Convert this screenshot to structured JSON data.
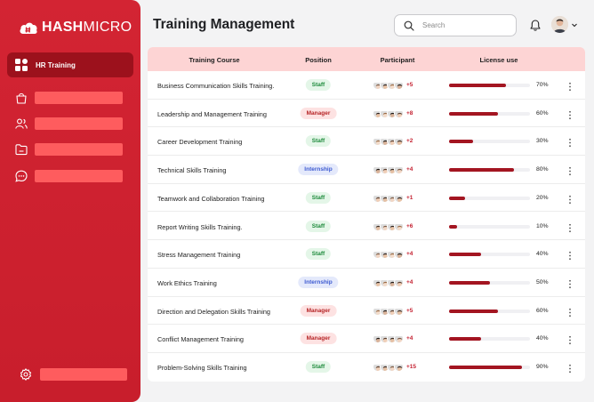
{
  "brand": {
    "name_bold": "HASH",
    "name_light": "MICRO"
  },
  "sidebar": {
    "active_item": {
      "label": "HR Training",
      "icon": "grid-icon"
    },
    "placeholder_items": [
      {
        "icon": "bag-icon"
      },
      {
        "icon": "users-icon"
      },
      {
        "icon": "folder-icon"
      },
      {
        "icon": "chat-icon"
      }
    ],
    "settings": {
      "icon": "gear-icon"
    }
  },
  "header": {
    "title": "Training Management",
    "search": {
      "placeholder": "Search",
      "value": ""
    },
    "notification_icon": "bell-icon"
  },
  "table": {
    "columns": [
      "Training Course",
      "Position",
      "Participant",
      "License use"
    ],
    "rows": [
      {
        "course": "Business Communication Skills Training.",
        "position": "Staff",
        "participants_more": "+5",
        "license_pct": 70,
        "license_label": "70%"
      },
      {
        "course": "Leadership and Management Training",
        "position": "Manager",
        "participants_more": "+8",
        "license_pct": 60,
        "license_label": "60%"
      },
      {
        "course": "Career Development Training",
        "position": "Staff",
        "participants_more": "+2",
        "license_pct": 30,
        "license_label": "30%"
      },
      {
        "course": "Technical Skills Training",
        "position": "Internship",
        "participants_more": "+4",
        "license_pct": 80,
        "license_label": "80%"
      },
      {
        "course": "Teamwork and Collaboration Training",
        "position": "Staff",
        "participants_more": "+1",
        "license_pct": 20,
        "license_label": "20%"
      },
      {
        "course": "Report Writing Skills Training.",
        "position": "Staff",
        "participants_more": "+6",
        "license_pct": 10,
        "license_label": "10%"
      },
      {
        "course": "Stress Management Training",
        "position": "Staff",
        "participants_more": "+4",
        "license_pct": 40,
        "license_label": "40%"
      },
      {
        "course": "Work Ethics Training",
        "position": "Internship",
        "participants_more": "+4",
        "license_pct": 50,
        "license_label": "50%"
      },
      {
        "course": "Direction and Delegation Skills Training",
        "position": "Manager",
        "participants_more": "+5",
        "license_pct": 60,
        "license_label": "60%"
      },
      {
        "course": "Conflict Management Training",
        "position": "Manager",
        "participants_more": "+4",
        "license_pct": 40,
        "license_label": "40%"
      },
      {
        "course": "Problem-Solving Skills Training",
        "position": "Staff",
        "participants_more": "+15",
        "license_pct": 90,
        "license_label": "90%"
      }
    ]
  },
  "colors": {
    "sidebar": "#d32433",
    "sidebar_active": "#9c111c",
    "placeholder_bar": "#fe5c5e",
    "table_header": "#fdd4d4",
    "progress_fill": "#a31521",
    "more_count": "#c42030"
  }
}
